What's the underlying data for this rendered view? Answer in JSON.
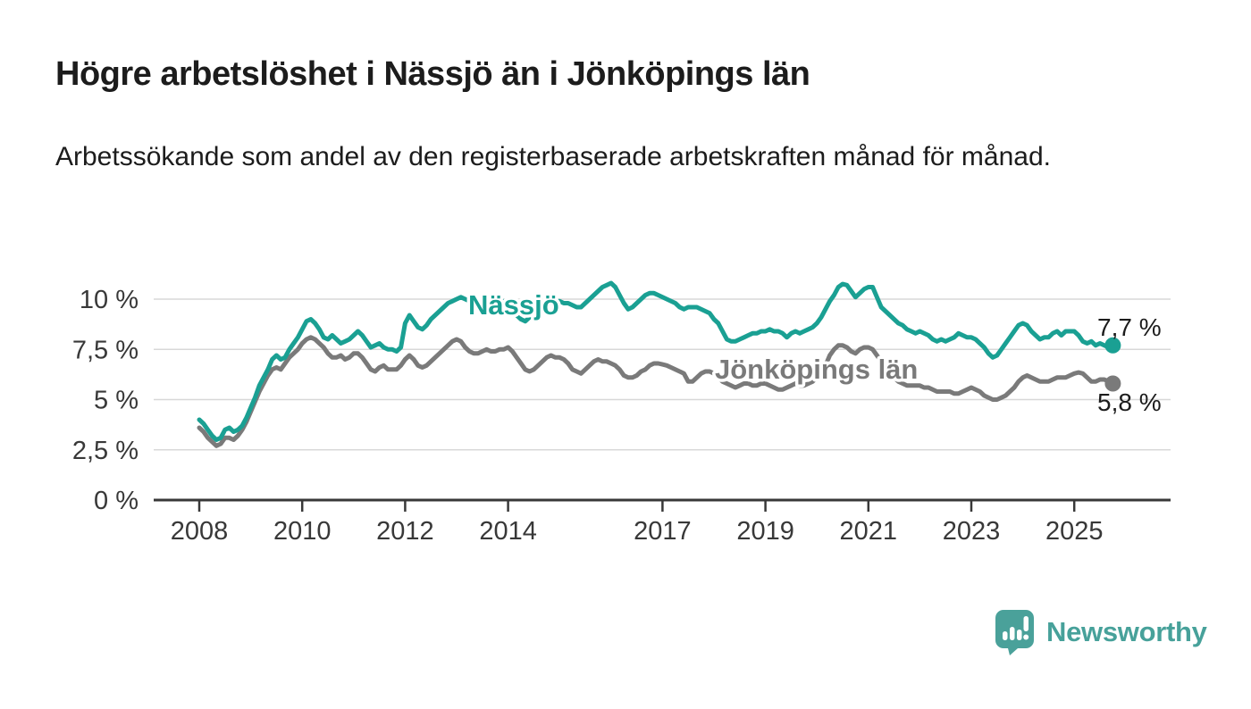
{
  "header": {
    "title": "Högre arbetslöshet i Nässjö än i Jönköpings län",
    "subtitle": "Arbetssökande som andel av den registerbaserade arbetskraften månad för månad."
  },
  "chart_data": {
    "type": "line",
    "unit": "%",
    "grid": true,
    "ylim": [
      0,
      11.5
    ],
    "x_start_year": 2008,
    "x_interval_months": 1,
    "x_tick_years": [
      2008,
      2010,
      2012,
      2014,
      2017,
      2019,
      2021,
      2023,
      2025
    ],
    "y_ticks": [
      {
        "value": 0,
        "label": "0 %"
      },
      {
        "value": 2.5,
        "label": "2,5 %"
      },
      {
        "value": 5,
        "label": "5 %"
      },
      {
        "value": 7.5,
        "label": "7,5 %"
      },
      {
        "value": 10,
        "label": "10 %"
      }
    ],
    "series": [
      {
        "name": "Nässjö",
        "color": "#1aa093",
        "end_label": "7,7 %",
        "values": [
          4.0,
          3.8,
          3.5,
          3.2,
          3.0,
          3.1,
          3.5,
          3.6,
          3.4,
          3.5,
          3.7,
          4.1,
          4.6,
          5.1,
          5.7,
          6.1,
          6.5,
          7.0,
          7.2,
          7.0,
          7.1,
          7.5,
          7.8,
          8.1,
          8.5,
          8.9,
          9.0,
          8.8,
          8.5,
          8.1,
          8.0,
          8.2,
          8.0,
          7.8,
          7.9,
          8.0,
          8.2,
          8.4,
          8.2,
          7.9,
          7.6,
          7.7,
          7.8,
          7.6,
          7.5,
          7.5,
          7.4,
          7.6,
          8.8,
          9.2,
          8.9,
          8.6,
          8.5,
          8.7,
          9.0,
          9.2,
          9.4,
          9.6,
          9.8,
          9.9,
          10.0,
          10.1,
          10.0,
          9.9,
          9.9,
          9.8,
          9.9,
          10.0,
          9.9,
          9.8,
          9.8,
          9.9,
          9.8,
          9.6,
          9.2,
          9.0,
          8.9,
          9.1,
          9.4,
          9.7,
          9.9,
          9.9,
          9.9,
          9.9,
          9.9,
          9.8,
          9.8,
          9.7,
          9.6,
          9.6,
          9.8,
          10.0,
          10.2,
          10.4,
          10.6,
          10.7,
          10.8,
          10.6,
          10.2,
          9.8,
          9.5,
          9.6,
          9.8,
          10.0,
          10.2,
          10.3,
          10.3,
          10.2,
          10.1,
          10.0,
          9.9,
          9.8,
          9.6,
          9.5,
          9.6,
          9.6,
          9.6,
          9.5,
          9.4,
          9.3,
          9.0,
          8.8,
          8.4,
          8.0,
          7.9,
          7.9,
          8.0,
          8.1,
          8.2,
          8.3,
          8.3,
          8.4,
          8.4,
          8.5,
          8.4,
          8.4,
          8.3,
          8.1,
          8.3,
          8.4,
          8.3,
          8.4,
          8.5,
          8.6,
          8.8,
          9.1,
          9.5,
          9.9,
          10.2,
          10.6,
          10.75,
          10.7,
          10.4,
          10.1,
          10.3,
          10.5,
          10.6,
          10.6,
          10.1,
          9.6,
          9.4,
          9.2,
          9.0,
          8.8,
          8.7,
          8.5,
          8.4,
          8.3,
          8.4,
          8.3,
          8.2,
          8.0,
          7.9,
          8.0,
          7.9,
          8.0,
          8.1,
          8.3,
          8.2,
          8.1,
          8.1,
          8.0,
          7.8,
          7.6,
          7.3,
          7.1,
          7.2,
          7.5,
          7.8,
          8.1,
          8.4,
          8.7,
          8.8,
          8.7,
          8.4,
          8.2,
          8.0,
          8.1,
          8.1,
          8.3,
          8.4,
          8.2,
          8.4,
          8.4,
          8.4,
          8.2,
          7.9,
          7.8,
          7.9,
          7.7,
          7.8,
          7.7,
          7.6,
          7.7
        ]
      },
      {
        "name": "Jönköpings län",
        "color": "#7a7a7a",
        "end_label": "5,8 %",
        "values": [
          3.6,
          3.4,
          3.1,
          2.9,
          2.7,
          2.8,
          3.1,
          3.1,
          3.0,
          3.2,
          3.5,
          3.9,
          4.4,
          4.9,
          5.4,
          5.8,
          6.2,
          6.5,
          6.6,
          6.5,
          6.8,
          7.1,
          7.3,
          7.5,
          7.8,
          8.0,
          8.1,
          8.0,
          7.8,
          7.6,
          7.3,
          7.1,
          7.1,
          7.2,
          7.0,
          7.1,
          7.3,
          7.3,
          7.1,
          6.8,
          6.5,
          6.4,
          6.6,
          6.7,
          6.5,
          6.5,
          6.5,
          6.7,
          7.0,
          7.2,
          7.0,
          6.7,
          6.6,
          6.7,
          6.9,
          7.1,
          7.3,
          7.5,
          7.7,
          7.9,
          8.0,
          7.9,
          7.6,
          7.4,
          7.3,
          7.3,
          7.4,
          7.5,
          7.4,
          7.4,
          7.5,
          7.5,
          7.6,
          7.4,
          7.1,
          6.8,
          6.5,
          6.4,
          6.5,
          6.7,
          6.9,
          7.1,
          7.2,
          7.1,
          7.1,
          7.0,
          6.8,
          6.5,
          6.4,
          6.3,
          6.5,
          6.7,
          6.9,
          7.0,
          6.9,
          6.9,
          6.8,
          6.7,
          6.5,
          6.2,
          6.1,
          6.1,
          6.2,
          6.4,
          6.5,
          6.7,
          6.8,
          6.8,
          6.75,
          6.7,
          6.6,
          6.5,
          6.4,
          6.3,
          5.9,
          5.9,
          6.1,
          6.3,
          6.4,
          6.4,
          6.3,
          6.1,
          5.9,
          5.8,
          5.7,
          5.6,
          5.7,
          5.8,
          5.8,
          5.7,
          5.7,
          5.8,
          5.8,
          5.7,
          5.6,
          5.5,
          5.5,
          5.6,
          5.7,
          5.8,
          5.7,
          5.7,
          5.8,
          5.9,
          6.1,
          6.3,
          6.7,
          7.2,
          7.5,
          7.7,
          7.7,
          7.6,
          7.4,
          7.3,
          7.5,
          7.6,
          7.6,
          7.5,
          7.2,
          6.9,
          6.6,
          6.3,
          6.1,
          5.9,
          5.8,
          5.7,
          5.7,
          5.7,
          5.7,
          5.6,
          5.6,
          5.5,
          5.4,
          5.4,
          5.4,
          5.4,
          5.3,
          5.3,
          5.4,
          5.5,
          5.6,
          5.5,
          5.4,
          5.2,
          5.1,
          5.0,
          5.0,
          5.1,
          5.2,
          5.4,
          5.6,
          5.9,
          6.1,
          6.2,
          6.1,
          6.0,
          5.9,
          5.9,
          5.9,
          6.0,
          6.1,
          6.1,
          6.1,
          6.2,
          6.3,
          6.35,
          6.3,
          6.1,
          5.9,
          5.9,
          6.0,
          6.0,
          5.9,
          5.8
        ]
      }
    ],
    "style": {
      "grid_color": "#d8d8d8",
      "axis_color": "#383838",
      "line_width": 5
    }
  },
  "footer": {
    "brand": "Newsworthy"
  }
}
